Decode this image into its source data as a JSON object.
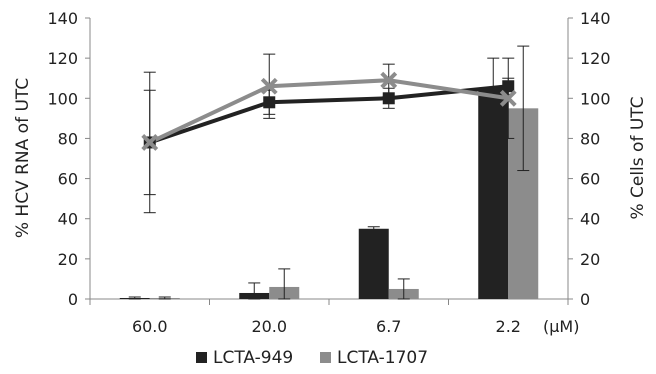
{
  "chart_data": {
    "type": "bar",
    "categories": [
      "60.0",
      "20.0",
      "6.7",
      "2.2"
    ],
    "unit_label": "(μM)",
    "left_axis": {
      "label": "% HCV RNA of UTC",
      "ylim": [
        0,
        140
      ],
      "ticks": [
        0,
        20,
        40,
        60,
        80,
        100,
        120,
        140
      ]
    },
    "right_axis": {
      "label": "% Cells of UTC",
      "ylim": [
        0,
        140
      ],
      "ticks": [
        0,
        20,
        40,
        60,
        80,
        100,
        120,
        140
      ]
    },
    "grid": false,
    "legend_position": "bottom",
    "series": [
      {
        "name": "LCTA-949",
        "color": "#222222",
        "bar_values": [
          0.5,
          3,
          35,
          105
        ],
        "bar_errors": [
          0.5,
          5,
          1,
          15
        ],
        "line_values": [
          78,
          98,
          100,
          106
        ],
        "line_errors": [
          35,
          6,
          5,
          4
        ],
        "marker": "square"
      },
      {
        "name": "LCTA-1707",
        "color": "#8c8c8c",
        "bar_values": [
          0.5,
          6,
          5,
          95
        ],
        "bar_errors": [
          0.5,
          9,
          5,
          31
        ],
        "line_values": [
          78,
          106,
          109,
          100
        ],
        "line_errors": [
          26,
          16,
          8,
          20
        ],
        "marker": "x"
      }
    ]
  }
}
